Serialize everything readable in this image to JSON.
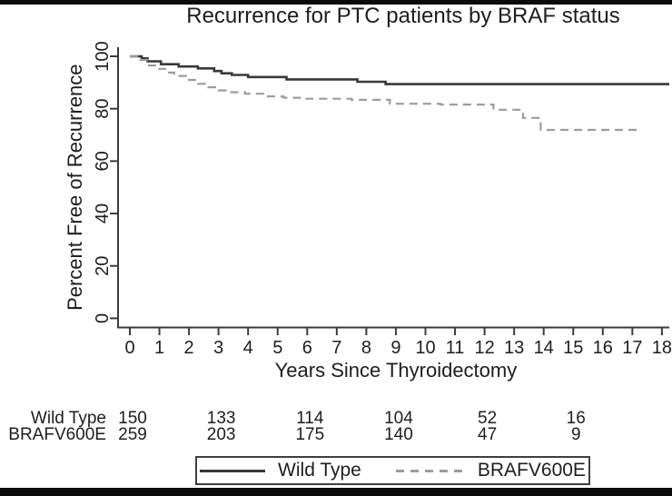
{
  "header": {
    "title": "Recurrence for PTC patients by BRAF status"
  },
  "chart_data": {
    "type": "line",
    "subtype": "kaplan-meier-step",
    "title": "Recurrence for PTC patients by BRAF status",
    "xlabel": "Years Since Thyroidectomy",
    "ylabel": "Percent Free of Recurrence",
    "xlim": [
      0,
      18
    ],
    "ylim": [
      0,
      100
    ],
    "x_ticks": [
      0,
      1,
      2,
      3,
      4,
      5,
      6,
      7,
      8,
      9,
      10,
      11,
      12,
      13,
      14,
      15,
      16,
      17,
      18
    ],
    "y_ticks": [
      0,
      20,
      40,
      60,
      80,
      100
    ],
    "grid": "off",
    "legend_position": "bottom",
    "series": [
      {
        "name": "Wild Type",
        "style": "solid",
        "color": "#383838",
        "points": [
          [
            0,
            100
          ],
          [
            0.4,
            99.2
          ],
          [
            0.6,
            98.1
          ],
          [
            1.05,
            97.0
          ],
          [
            1.65,
            96.1
          ],
          [
            2.3,
            95.4
          ],
          [
            2.85,
            94.4
          ],
          [
            3.1,
            93.5
          ],
          [
            3.45,
            92.9
          ],
          [
            4.0,
            92.1
          ],
          [
            5.3,
            91.2
          ],
          [
            7.7,
            90.3
          ],
          [
            8.65,
            89.4
          ],
          [
            18.25,
            89.4
          ]
        ]
      },
      {
        "name": "BRAFV600E",
        "style": "dashed",
        "color": "#9c9c9c",
        "points": [
          [
            0,
            100
          ],
          [
            0.35,
            98.6
          ],
          [
            0.6,
            96.5
          ],
          [
            0.9,
            95.2
          ],
          [
            1.2,
            93.8
          ],
          [
            1.5,
            92.5
          ],
          [
            1.9,
            91.0
          ],
          [
            2.3,
            89.5
          ],
          [
            2.65,
            88.2
          ],
          [
            3.0,
            87.0
          ],
          [
            3.35,
            86.3
          ],
          [
            3.9,
            85.7
          ],
          [
            4.6,
            84.7
          ],
          [
            5.2,
            84.2
          ],
          [
            5.9,
            83.8
          ],
          [
            7.5,
            83.4
          ],
          [
            8.8,
            81.9
          ],
          [
            10.5,
            81.6
          ],
          [
            12.3,
            79.6
          ],
          [
            13.3,
            76.5
          ],
          [
            13.9,
            71.9
          ],
          [
            17.3,
            71.9
          ]
        ]
      }
    ]
  },
  "risk_table": {
    "time_points": [
      0,
      3,
      6,
      9,
      12,
      15
    ],
    "rows": [
      {
        "label": "Wild Type",
        "counts": [
          "150",
          "133",
          "114",
          "104",
          "52",
          "16"
        ]
      },
      {
        "label": "BRAFV600E",
        "counts": [
          "259",
          "203",
          "175",
          "140",
          "47",
          "9"
        ]
      }
    ]
  },
  "legend": {
    "items": [
      {
        "label": "Wild Type",
        "style": "solid"
      },
      {
        "label": "BRAFV600E",
        "style": "dashed"
      }
    ]
  },
  "colors": {
    "solid_series": "#383838",
    "dashed_series": "#9c9c9c",
    "axis": "#3c3c3c",
    "text": "#1e1e1e",
    "frame_bars": "#0b0b0b"
  }
}
